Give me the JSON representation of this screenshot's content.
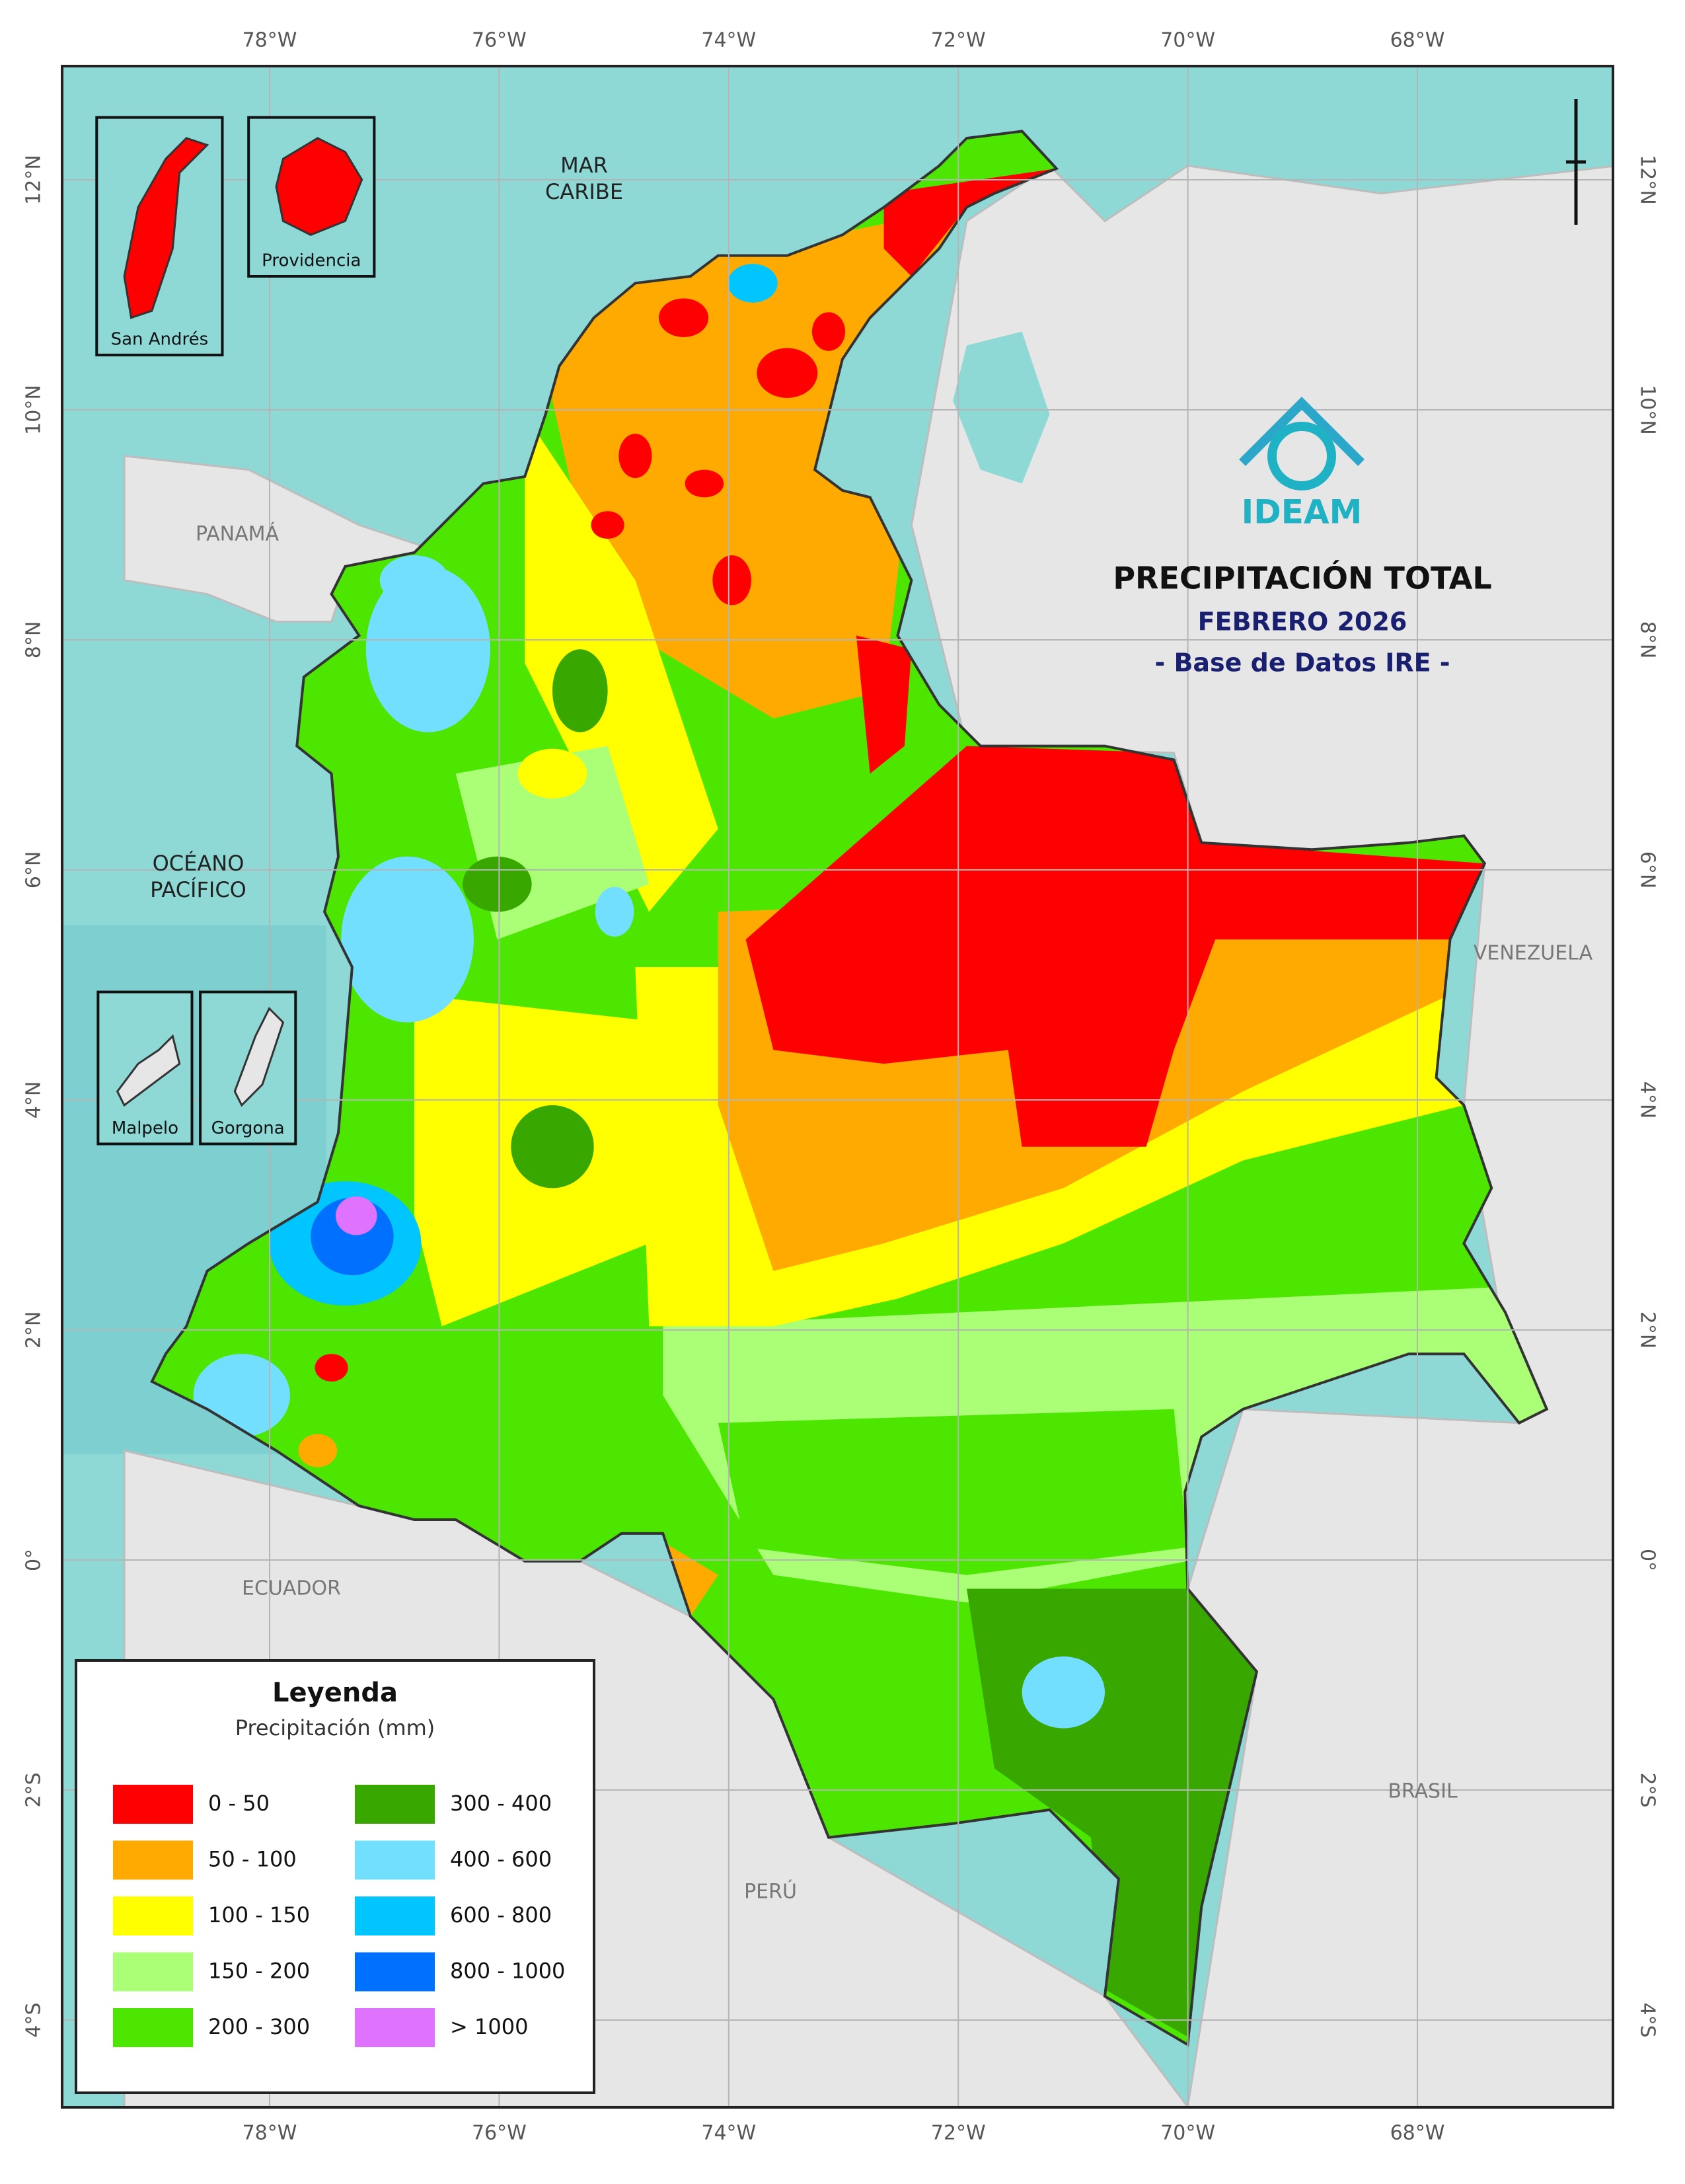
{
  "title": "PRECIPITACIÓN TOTAL",
  "period": "FEBRERO 2026",
  "source": "- Base de Datos IRE -",
  "logo": "IDEAM",
  "lon_ticks": [
    "78°W",
    "76°W",
    "74°W",
    "72°W",
    "70°W",
    "68°W"
  ],
  "lat_ticks": [
    "12°N",
    "10°N",
    "8°N",
    "6°N",
    "4°N",
    "2°N",
    "0°",
    "2°S",
    "4°S"
  ],
  "places": [
    {
      "lines": [
        "MAR",
        "CARIBE"
      ]
    },
    {
      "lines": [
        "PANAMÁ"
      ]
    },
    {
      "lines": [
        "OCÉANO",
        "PACÍFICO"
      ]
    },
    {
      "lines": [
        "VENEZUELA"
      ]
    },
    {
      "lines": [
        "ECUADOR"
      ]
    },
    {
      "lines": [
        "BRASIL"
      ]
    },
    {
      "lines": [
        "PERÚ"
      ]
    }
  ],
  "insets": [
    "San Andrés",
    "Providencia",
    "Malpelo",
    "Gorgona"
  ],
  "legend": {
    "title": "Leyenda",
    "subtitle": "Precipitación (mm)",
    "items": [
      {
        "label": "0 - 50",
        "color": "#ff0000"
      },
      {
        "label": "50 - 100",
        "color": "#ffaa00"
      },
      {
        "label": "100 - 150",
        "color": "#ffff00"
      },
      {
        "label": "150 - 200",
        "color": "#aaff77"
      },
      {
        "label": "200 - 300",
        "color": "#4ce600"
      },
      {
        "label": "300 - 400",
        "color": "#38a800"
      },
      {
        "label": "400 - 600",
        "color": "#73dfff"
      },
      {
        "label": "600 - 800",
        "color": "#00c5ff"
      },
      {
        "label": "800 - 1000",
        "color": "#0070ff"
      },
      {
        "label": "> 1000",
        "color": "#df73ff"
      }
    ]
  }
}
